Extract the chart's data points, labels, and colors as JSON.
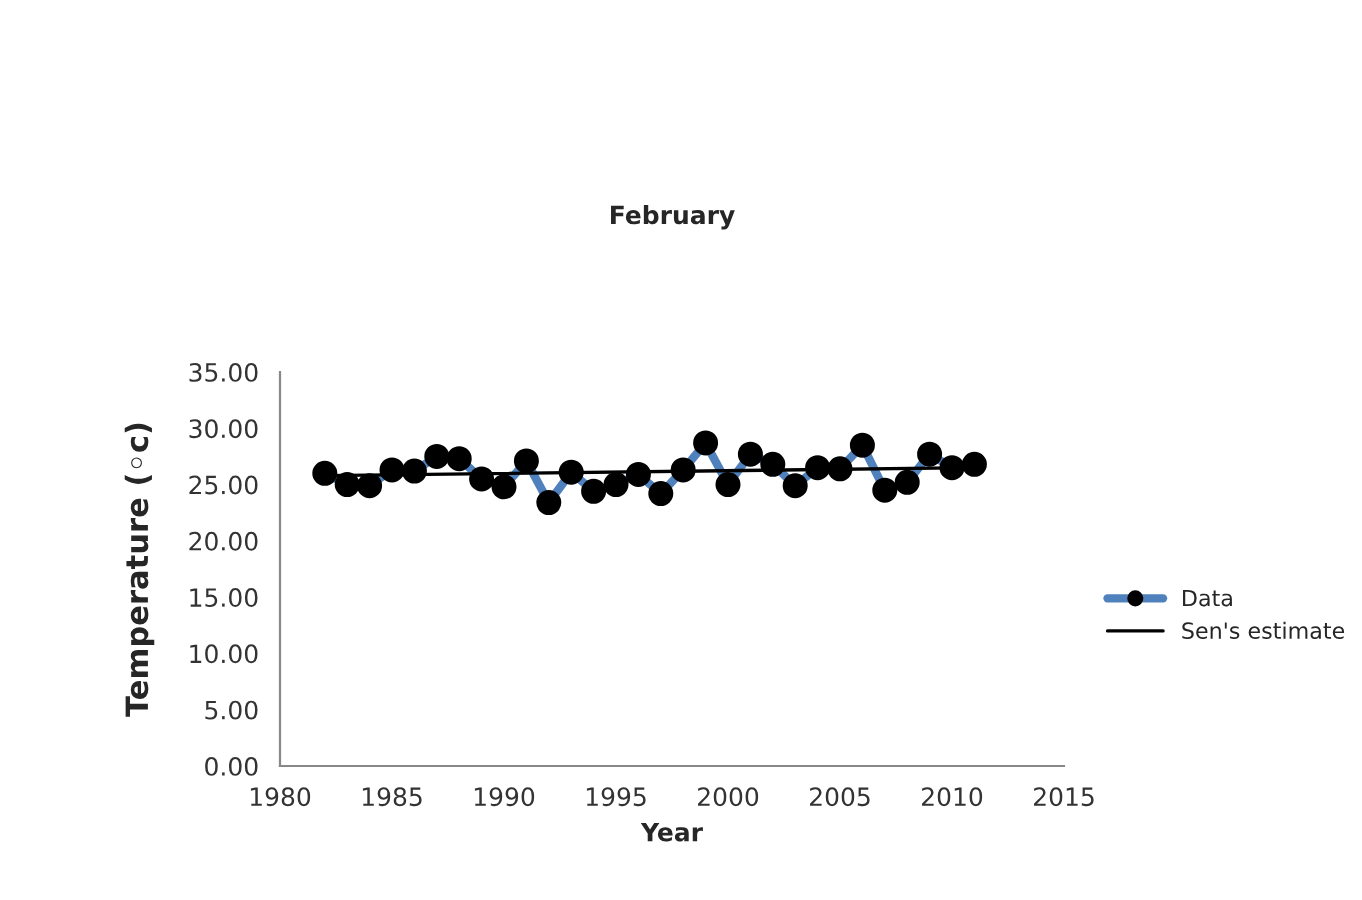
{
  "chart_data": {
    "type": "line",
    "title": "February",
    "xlabel": "Year",
    "ylabel": "Temperature (◦c)",
    "xlim": [
      1980,
      2015
    ],
    "xticks": [
      1980,
      1985,
      1990,
      1995,
      2000,
      2005,
      2010,
      2015
    ],
    "ylim": [
      0,
      35
    ],
    "yticks": [
      {
        "value": 0,
        "label": "0.00"
      },
      {
        "value": 5,
        "label": "5.00"
      },
      {
        "value": 10,
        "label": "10.00"
      },
      {
        "value": 15,
        "label": "15.00"
      },
      {
        "value": 20,
        "label": "20.00"
      },
      {
        "value": 25,
        "label": "25.00"
      },
      {
        "value": 30,
        "label": "30.00"
      },
      {
        "value": 35,
        "label": "35.00"
      }
    ],
    "grid": false,
    "legend": "right",
    "series": [
      {
        "name": "Data",
        "color": "#4f81bd",
        "marker": "circle",
        "x": [
          1982,
          1983,
          1984,
          1985,
          1986,
          1987,
          1988,
          1989,
          1990,
          1991,
          1992,
          1993,
          1994,
          1995,
          1996,
          1997,
          1998,
          1999,
          2000,
          2001,
          2002,
          2003,
          2004,
          2005,
          2006,
          2007,
          2008,
          2009,
          2010,
          2011
        ],
        "values": [
          26.0,
          25.0,
          24.9,
          26.3,
          26.2,
          27.5,
          27.3,
          25.5,
          24.8,
          27.1,
          23.4,
          26.1,
          24.4,
          25.0,
          25.9,
          24.2,
          26.3,
          28.7,
          25.0,
          27.7,
          26.8,
          24.9,
          26.5,
          26.4,
          28.5,
          24.5,
          25.2,
          27.7,
          26.5,
          26.8
        ]
      },
      {
        "name": "Sen's estimate",
        "color": "#000000",
        "x": [
          1982,
          2011
        ],
        "values": [
          25.8,
          26.5
        ]
      }
    ]
  }
}
